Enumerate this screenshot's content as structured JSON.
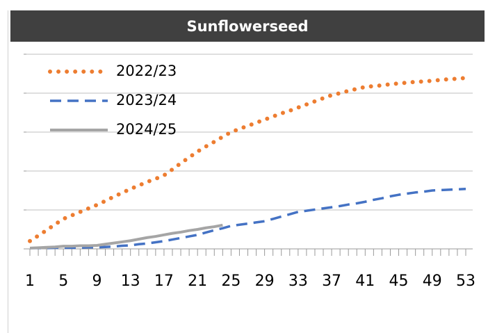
{
  "chart_data": {
    "type": "line",
    "title": "Sunflowerseed",
    "x": [
      1,
      2,
      3,
      4,
      5,
      6,
      7,
      8,
      9,
      10,
      11,
      12,
      13,
      14,
      15,
      16,
      17,
      18,
      19,
      20,
      21,
      22,
      23,
      24,
      25,
      26,
      27,
      28,
      29,
      30,
      31,
      32,
      33,
      34,
      35,
      36,
      37,
      38,
      39,
      40,
      41,
      42,
      43,
      44,
      45,
      46,
      47,
      48,
      49,
      50,
      51,
      52,
      53
    ],
    "xlim": [
      1,
      53
    ],
    "xticks": [
      1,
      5,
      9,
      13,
      17,
      21,
      25,
      29,
      33,
      37,
      41,
      45,
      49,
      53
    ],
    "ylim": [
      0,
      5
    ],
    "yticks": [
      0,
      1,
      2,
      3,
      4,
      5
    ],
    "grid": true,
    "legend": "top-left",
    "series": [
      {
        "name": "2022/23",
        "color": "#ed7d31",
        "style": "dotted",
        "values": [
          0.2,
          0.34,
          0.48,
          0.63,
          0.77,
          0.86,
          0.95,
          1.04,
          1.13,
          1.23,
          1.34,
          1.44,
          1.54,
          1.63,
          1.72,
          1.8,
          1.89,
          2.04,
          2.2,
          2.35,
          2.5,
          2.63,
          2.75,
          2.88,
          3.0,
          3.08,
          3.16,
          3.24,
          3.32,
          3.4,
          3.48,
          3.55,
          3.63,
          3.71,
          3.79,
          3.87,
          3.95,
          4.0,
          4.06,
          4.11,
          4.16,
          4.18,
          4.2,
          4.23,
          4.25,
          4.27,
          4.29,
          4.3,
          4.32,
          4.34,
          4.36,
          4.37,
          4.39
        ]
      },
      {
        "name": "2023/24",
        "color": "#4472c4",
        "style": "dashed",
        "values": [
          0.02,
          0.02,
          0.02,
          0.03,
          0.03,
          0.03,
          0.03,
          0.04,
          0.04,
          0.05,
          0.06,
          0.08,
          0.09,
          0.12,
          0.14,
          0.17,
          0.2,
          0.24,
          0.28,
          0.32,
          0.36,
          0.42,
          0.48,
          0.53,
          0.59,
          0.62,
          0.65,
          0.68,
          0.71,
          0.77,
          0.83,
          0.89,
          0.95,
          0.98,
          1.01,
          1.04,
          1.07,
          1.1,
          1.14,
          1.17,
          1.21,
          1.26,
          1.3,
          1.35,
          1.39,
          1.42,
          1.45,
          1.47,
          1.5,
          1.51,
          1.52,
          1.53,
          1.54
        ]
      },
      {
        "name": "2024/25",
        "color": "#a5a5a5",
        "style": "solid",
        "values": [
          0.02,
          0.03,
          0.04,
          0.05,
          0.07,
          0.07,
          0.08,
          0.08,
          0.09,
          0.12,
          0.15,
          0.18,
          0.21,
          0.25,
          0.29,
          0.32,
          0.36,
          0.4,
          0.43,
          0.47,
          0.5,
          0.54,
          0.57,
          0.61,
          null,
          null,
          null,
          null,
          null,
          null,
          null,
          null,
          null,
          null,
          null,
          null,
          null,
          null,
          null,
          null,
          null,
          null,
          null,
          null,
          null,
          null,
          null,
          null,
          null,
          null,
          null,
          null,
          null
        ]
      }
    ]
  }
}
